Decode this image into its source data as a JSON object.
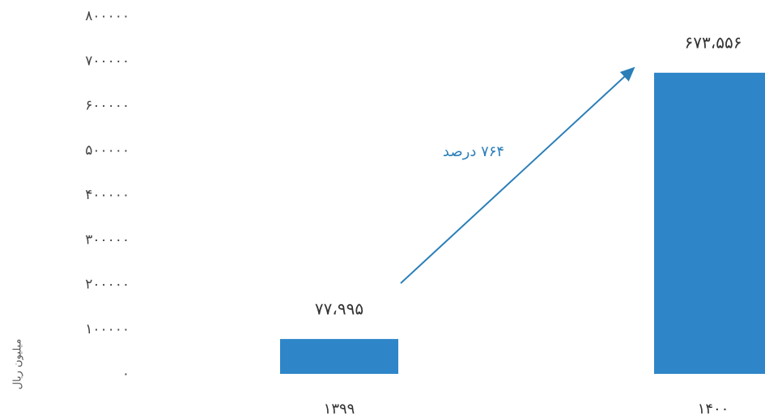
{
  "chart_data": {
    "type": "bar",
    "y_label": "میلیون ریال",
    "annotation": "۷۶۴ درصد",
    "categories": [
      "۱۳۹۹",
      "۱۴۰۰"
    ],
    "values": [
      77995,
      673556
    ],
    "value_labels": [
      "۷۷،۹۹۵",
      "۶۷۳،۵۵۶"
    ],
    "color": "#2e86c8",
    "ylim": [
      0,
      800000
    ],
    "yticks": [
      {
        "value": 0,
        "label": "۰"
      },
      {
        "value": 100000,
        "label": "۱۰۰۰۰۰"
      },
      {
        "value": 200000,
        "label": "۲۰۰۰۰۰"
      },
      {
        "value": 300000,
        "label": "۳۰۰۰۰۰"
      },
      {
        "value": 400000,
        "label": "۴۰۰۰۰۰"
      },
      {
        "value": 500000,
        "label": "۵۰۰۰۰۰"
      },
      {
        "value": 600000,
        "label": "۶۰۰۰۰۰"
      },
      {
        "value": 700000,
        "label": "۷۰۰۰۰۰"
      },
      {
        "value": 800000,
        "label": "۸۰۰۰۰۰"
      }
    ],
    "grid": false
  }
}
